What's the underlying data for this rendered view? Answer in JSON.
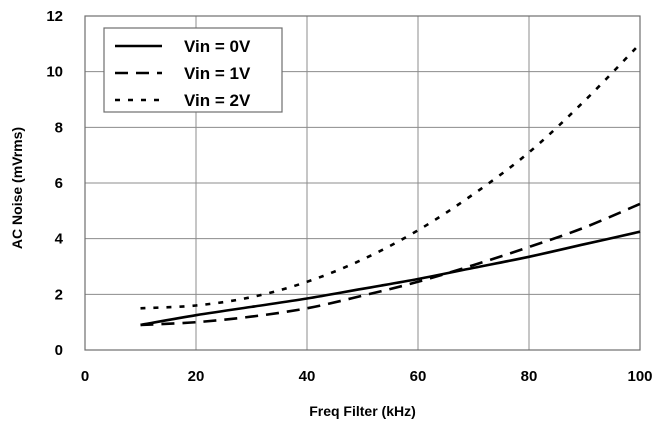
{
  "chart_data": {
    "type": "line",
    "title": "",
    "xlabel": "Freq Filter (kHz)",
    "ylabel": "AC Noise (mVrms)",
    "xlim": [
      0,
      100
    ],
    "ylim": [
      0,
      12
    ],
    "x_ticks": [
      0,
      20,
      40,
      60,
      80,
      100
    ],
    "y_ticks": [
      0,
      2,
      4,
      6,
      8,
      10,
      12
    ],
    "grid": true,
    "legend_position": "top-left",
    "series": [
      {
        "name": "Vin = 0V",
        "style": "solid",
        "x": [
          10,
          20,
          30,
          40,
          50,
          60,
          70,
          80,
          90,
          100
        ],
        "y": [
          0.9,
          1.25,
          1.55,
          1.85,
          2.2,
          2.55,
          2.95,
          3.35,
          3.8,
          4.25
        ]
      },
      {
        "name": "Vin = 1V",
        "style": "dashed",
        "x": [
          10,
          20,
          30,
          40,
          50,
          60,
          70,
          80,
          90,
          100
        ],
        "y": [
          0.9,
          1.0,
          1.2,
          1.5,
          1.95,
          2.45,
          3.05,
          3.7,
          4.4,
          5.25
        ]
      },
      {
        "name": "Vin = 2V",
        "style": "dotted",
        "x": [
          10,
          20,
          30,
          40,
          50,
          60,
          70,
          80,
          90,
          100
        ],
        "y": [
          1.5,
          1.6,
          1.9,
          2.45,
          3.25,
          4.3,
          5.6,
          7.1,
          8.95,
          11.0
        ]
      }
    ]
  }
}
